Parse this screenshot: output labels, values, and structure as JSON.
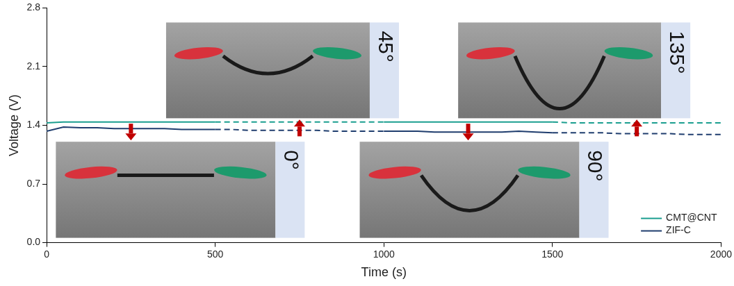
{
  "chart_data": {
    "type": "line",
    "x_label": "Time (s)",
    "y_label": "Voltage (V)",
    "x": [
      0,
      50,
      100,
      150,
      200,
      250,
      300,
      350,
      400,
      450,
      500,
      550,
      600,
      650,
      700,
      750,
      800,
      850,
      900,
      950,
      1000,
      1050,
      1100,
      1150,
      1200,
      1250,
      1300,
      1350,
      1400,
      1450,
      1500,
      1550,
      1600,
      1650,
      1700,
      1750,
      1800,
      1850,
      1900,
      1950,
      2000
    ],
    "series": [
      {
        "name": "CMT@CNT",
        "color": "#1a9e8f",
        "line_style": "solid",
        "values": [
          1.43,
          1.44,
          1.44,
          1.44,
          1.44,
          1.44,
          1.44,
          1.44,
          1.44,
          1.44,
          1.44,
          null,
          null,
          null,
          null,
          null,
          null,
          null,
          null,
          null,
          1.44,
          1.44,
          1.44,
          1.44,
          1.44,
          1.44,
          1.44,
          1.44,
          1.44,
          1.44,
          1.44,
          null,
          null,
          null,
          null,
          null,
          null,
          null,
          null,
          null,
          null
        ]
      },
      {
        "name": "CMT@CNT",
        "color": "#1a9e8f",
        "line_style": "dashed",
        "values": [
          null,
          null,
          null,
          null,
          null,
          null,
          null,
          null,
          null,
          null,
          1.44,
          1.44,
          1.44,
          1.44,
          1.44,
          1.44,
          1.44,
          1.44,
          1.44,
          1.44,
          1.44,
          null,
          null,
          null,
          null,
          null,
          null,
          null,
          null,
          null,
          1.44,
          1.43,
          1.43,
          1.43,
          1.43,
          1.43,
          1.43,
          1.43,
          1.43,
          1.43,
          1.43
        ]
      },
      {
        "name": "ZIF-C",
        "color": "#1f3d6e",
        "line_style": "solid",
        "values": [
          1.33,
          1.38,
          1.37,
          1.37,
          1.36,
          1.36,
          1.36,
          1.36,
          1.35,
          1.35,
          1.35,
          null,
          null,
          null,
          null,
          null,
          null,
          null,
          null,
          null,
          1.33,
          1.33,
          1.33,
          1.32,
          1.32,
          1.32,
          1.32,
          1.32,
          1.33,
          1.32,
          1.31,
          null,
          null,
          null,
          null,
          null,
          null,
          null,
          null,
          null,
          null
        ]
      },
      {
        "name": "ZIF-C",
        "color": "#1f3d6e",
        "line_style": "dashed",
        "values": [
          null,
          null,
          null,
          null,
          null,
          null,
          null,
          null,
          null,
          null,
          1.35,
          1.35,
          1.34,
          1.34,
          1.34,
          1.34,
          1.34,
          1.33,
          1.33,
          1.33,
          1.33,
          null,
          null,
          null,
          null,
          null,
          null,
          null,
          null,
          null,
          1.31,
          1.31,
          1.31,
          1.31,
          1.3,
          1.3,
          1.3,
          1.3,
          1.29,
          1.29,
          1.29
        ]
      }
    ],
    "xlim": [
      0,
      2000
    ],
    "xticks": [
      0,
      500,
      1000,
      1500,
      2000
    ],
    "ylim": [
      0,
      2.8
    ],
    "yticks": [
      {
        "value": 0,
        "label": "0.0"
      },
      0.7,
      1.4,
      2.1,
      2.8
    ],
    "grid": false,
    "legend": "lower right",
    "annotations": [
      {
        "text": "0°",
        "x": 250
      },
      {
        "text": "45°",
        "x": 750
      },
      {
        "text": "90°",
        "x": 1250
      },
      {
        "text": "135°",
        "x": 1750
      }
    ]
  }
}
